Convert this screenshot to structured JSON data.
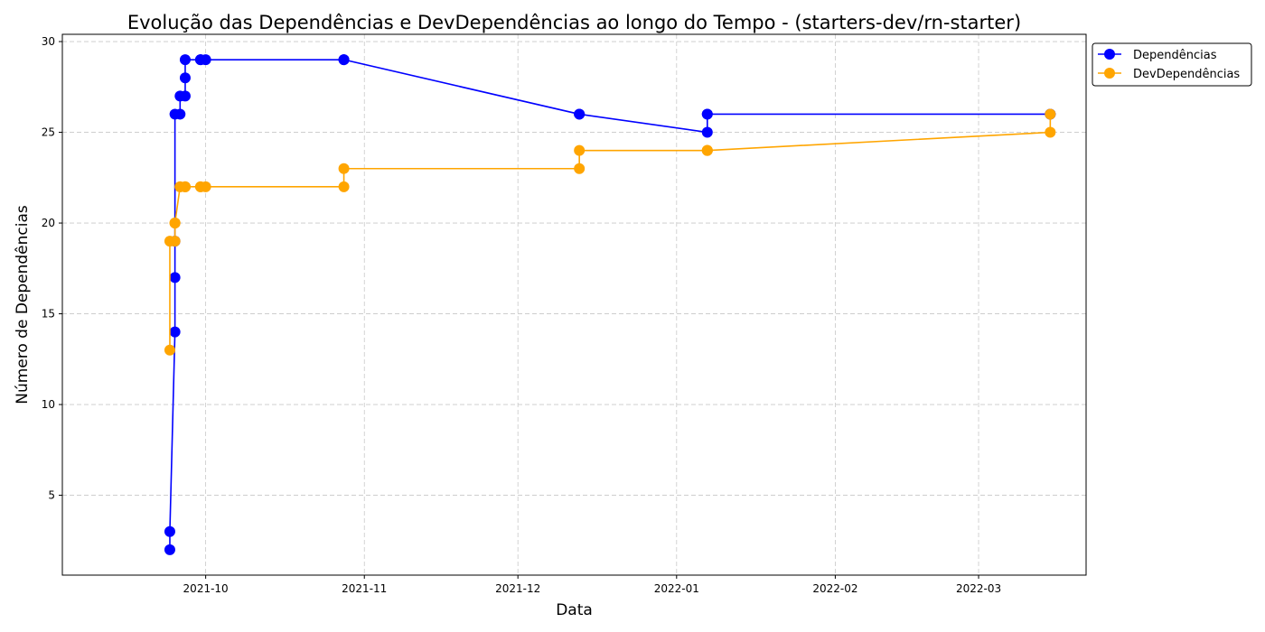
{
  "chart_data": {
    "type": "line",
    "title": "Evolução das Dependências e DevDependências ao longo do Tempo - (starters-dev/rn-starter)",
    "xlabel": "Data",
    "ylabel": "Número de Dependências",
    "x_ticks": [
      "2021-10",
      "2021-11",
      "2021-12",
      "2022-01",
      "2022-02",
      "2022-03"
    ],
    "y_ticks": [
      5,
      10,
      15,
      20,
      25,
      30
    ],
    "xlim": [
      "2021-09-03",
      "2022-03-22"
    ],
    "ylim": [
      0.6,
      30.4
    ],
    "grid": true,
    "legend_position": "outside-top-right",
    "x": [
      "2021-09-24",
      "2021-09-24",
      "2021-09-25",
      "2021-09-25",
      "2021-09-25",
      "2021-09-25",
      "2021-09-26",
      "2021-09-26",
      "2021-09-27",
      "2021-09-27",
      "2021-09-27",
      "2021-09-30",
      "2021-09-30",
      "2021-10-01",
      "2021-10-28",
      "2021-10-28",
      "2021-12-13",
      "2021-12-13",
      "2022-01-07",
      "2022-01-07",
      "2022-01-07",
      "2022-03-15",
      "2022-03-15"
    ],
    "series": [
      {
        "name": "Dependências",
        "color": "#0000ff",
        "values": [
          2,
          3,
          14,
          17,
          19,
          26,
          26,
          27,
          27,
          28,
          29,
          29,
          29,
          29,
          29,
          29,
          26,
          26,
          25,
          26,
          26,
          26,
          26
        ]
      },
      {
        "name": "DevDependências",
        "color": "#ffa500",
        "values": [
          13,
          19,
          19,
          20,
          20,
          20,
          22,
          22,
          22,
          22,
          22,
          22,
          22,
          22,
          22,
          23,
          23,
          24,
          24,
          24,
          24,
          25,
          26
        ]
      }
    ]
  }
}
